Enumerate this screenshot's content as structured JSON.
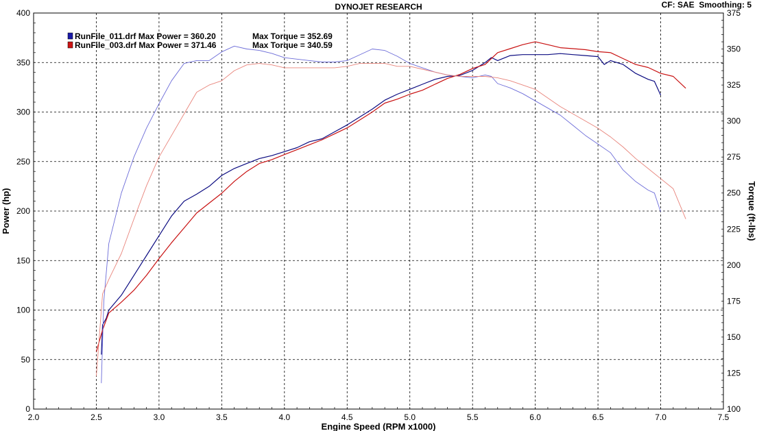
{
  "header": {
    "title": "DYNOJET RESEARCH",
    "cf_label": "CF: SAE",
    "smoothing_label": "Smoothing: 5"
  },
  "chart_data": {
    "type": "line",
    "title": "DYNOJET RESEARCH",
    "xlabel": "Engine Speed (RPM x1000)",
    "ylabel_left": "Power (hp)",
    "ylabel_right": "Torque (ft-lbs)",
    "xlim": [
      2.0,
      7.5
    ],
    "ylim_left": [
      0,
      400
    ],
    "ylim_right": [
      100,
      375
    ],
    "x_ticks": [
      "2.0",
      "2.5",
      "3.0",
      "3.5",
      "4.0",
      "4.5",
      "5.0",
      "5.5",
      "6.0",
      "6.5",
      "7.0",
      "7.5"
    ],
    "y_left_ticks": [
      "0",
      "50",
      "100",
      "150",
      "200",
      "250",
      "300",
      "350",
      "400"
    ],
    "y_right_ticks": [
      "100",
      "125",
      "150",
      "175",
      "200",
      "225",
      "250",
      "275",
      "300",
      "325",
      "350",
      "375"
    ],
    "grid": true,
    "legend": [
      {
        "file": "RunFile_011.drf",
        "power_label": "Max Power = 360.20",
        "torque_label": "Max Torque = 352.69",
        "color": "#1a1aa8"
      },
      {
        "file": "RunFile_003.drf",
        "power_label": "Max Power = 371.46",
        "torque_label": "Max Torque = 340.59",
        "color": "#cc1414"
      }
    ],
    "series": [
      {
        "name": "RunFile_011.drf Power",
        "axis": "left",
        "color": "#0a0a80",
        "width": 1.2,
        "points": [
          [
            2.54,
            55
          ],
          [
            2.55,
            85
          ],
          [
            2.58,
            92
          ],
          [
            2.6,
            100
          ],
          [
            2.7,
            115
          ],
          [
            2.8,
            135
          ],
          [
            2.9,
            155
          ],
          [
            3.0,
            175
          ],
          [
            3.1,
            195
          ],
          [
            3.2,
            210
          ],
          [
            3.3,
            217
          ],
          [
            3.4,
            225
          ],
          [
            3.5,
            236
          ],
          [
            3.6,
            243
          ],
          [
            3.7,
            248
          ],
          [
            3.8,
            253
          ],
          [
            3.9,
            256
          ],
          [
            4.0,
            260
          ],
          [
            4.1,
            264
          ],
          [
            4.2,
            270
          ],
          [
            4.3,
            273
          ],
          [
            4.4,
            280
          ],
          [
            4.5,
            287
          ],
          [
            4.6,
            295
          ],
          [
            4.7,
            303
          ],
          [
            4.8,
            312
          ],
          [
            4.9,
            318
          ],
          [
            5.0,
            323
          ],
          [
            5.1,
            328
          ],
          [
            5.2,
            333
          ],
          [
            5.3,
            336
          ],
          [
            5.4,
            337
          ],
          [
            5.5,
            342
          ],
          [
            5.6,
            350
          ],
          [
            5.65,
            355
          ],
          [
            5.7,
            352
          ],
          [
            5.8,
            357
          ],
          [
            5.9,
            358
          ],
          [
            6.0,
            358
          ],
          [
            6.1,
            358
          ],
          [
            6.2,
            359
          ],
          [
            6.3,
            358
          ],
          [
            6.4,
            357
          ],
          [
            6.5,
            356
          ],
          [
            6.55,
            348
          ],
          [
            6.6,
            352
          ],
          [
            6.7,
            348
          ],
          [
            6.8,
            339
          ],
          [
            6.9,
            333
          ],
          [
            6.95,
            331
          ],
          [
            7.0,
            317
          ]
        ]
      },
      {
        "name": "RunFile_003.drf Power",
        "axis": "left",
        "color": "#c81010",
        "width": 1.2,
        "points": [
          [
            2.5,
            58
          ],
          [
            2.55,
            80
          ],
          [
            2.6,
            97
          ],
          [
            2.7,
            108
          ],
          [
            2.8,
            120
          ],
          [
            2.9,
            135
          ],
          [
            3.0,
            152
          ],
          [
            3.1,
            168
          ],
          [
            3.2,
            183
          ],
          [
            3.3,
            198
          ],
          [
            3.4,
            208
          ],
          [
            3.5,
            218
          ],
          [
            3.6,
            230
          ],
          [
            3.7,
            240
          ],
          [
            3.8,
            248
          ],
          [
            3.9,
            252
          ],
          [
            4.0,
            257
          ],
          [
            4.1,
            262
          ],
          [
            4.2,
            267
          ],
          [
            4.3,
            272
          ],
          [
            4.4,
            278
          ],
          [
            4.5,
            284
          ],
          [
            4.6,
            292
          ],
          [
            4.7,
            300
          ],
          [
            4.8,
            309
          ],
          [
            4.9,
            313
          ],
          [
            5.0,
            318
          ],
          [
            5.1,
            322
          ],
          [
            5.2,
            328
          ],
          [
            5.3,
            334
          ],
          [
            5.4,
            338
          ],
          [
            5.5,
            344
          ],
          [
            5.6,
            348
          ],
          [
            5.7,
            360
          ],
          [
            5.8,
            364
          ],
          [
            5.9,
            368
          ],
          [
            6.0,
            371
          ],
          [
            6.1,
            368
          ],
          [
            6.2,
            365
          ],
          [
            6.3,
            364
          ],
          [
            6.4,
            363
          ],
          [
            6.5,
            361
          ],
          [
            6.6,
            360
          ],
          [
            6.7,
            354
          ],
          [
            6.8,
            348
          ],
          [
            6.9,
            345
          ],
          [
            7.0,
            339
          ],
          [
            7.1,
            336
          ],
          [
            7.2,
            324
          ]
        ]
      },
      {
        "name": "RunFile_011.drf Torque",
        "axis": "right",
        "color": "#6b6bd8",
        "width": 0.9,
        "points": [
          [
            2.54,
            118
          ],
          [
            2.56,
            175
          ],
          [
            2.6,
            215
          ],
          [
            2.7,
            250
          ],
          [
            2.8,
            275
          ],
          [
            2.9,
            295
          ],
          [
            3.0,
            312
          ],
          [
            3.1,
            328
          ],
          [
            3.2,
            340
          ],
          [
            3.3,
            342
          ],
          [
            3.4,
            342
          ],
          [
            3.5,
            348
          ],
          [
            3.6,
            352
          ],
          [
            3.7,
            350
          ],
          [
            3.8,
            349
          ],
          [
            3.9,
            347
          ],
          [
            4.0,
            344
          ],
          [
            4.1,
            343
          ],
          [
            4.2,
            342
          ],
          [
            4.3,
            341
          ],
          [
            4.4,
            341
          ],
          [
            4.5,
            342
          ],
          [
            4.6,
            346
          ],
          [
            4.7,
            350
          ],
          [
            4.8,
            349
          ],
          [
            4.9,
            345
          ],
          [
            5.0,
            340
          ],
          [
            5.1,
            337
          ],
          [
            5.2,
            334
          ],
          [
            5.3,
            332
          ],
          [
            5.4,
            331
          ],
          [
            5.5,
            330
          ],
          [
            5.6,
            332
          ],
          [
            5.65,
            331
          ],
          [
            5.7,
            326
          ],
          [
            5.8,
            323
          ],
          [
            5.9,
            319
          ],
          [
            6.0,
            314
          ],
          [
            6.1,
            309
          ],
          [
            6.2,
            304
          ],
          [
            6.3,
            297
          ],
          [
            6.4,
            290
          ],
          [
            6.5,
            284
          ],
          [
            6.6,
            278
          ],
          [
            6.7,
            266
          ],
          [
            6.8,
            258
          ],
          [
            6.9,
            252
          ],
          [
            6.95,
            250
          ],
          [
            7.0,
            237
          ]
        ]
      },
      {
        "name": "RunFile_003.drf Torque",
        "axis": "right",
        "color": "#e8837a",
        "width": 0.9,
        "points": [
          [
            2.5,
            123
          ],
          [
            2.55,
            180
          ],
          [
            2.6,
            190
          ],
          [
            2.7,
            208
          ],
          [
            2.8,
            232
          ],
          [
            2.9,
            255
          ],
          [
            3.0,
            275
          ],
          [
            3.1,
            290
          ],
          [
            3.2,
            305
          ],
          [
            3.3,
            320
          ],
          [
            3.4,
            325
          ],
          [
            3.5,
            328
          ],
          [
            3.6,
            335
          ],
          [
            3.7,
            339
          ],
          [
            3.8,
            340
          ],
          [
            3.9,
            339
          ],
          [
            4.0,
            337
          ],
          [
            4.1,
            337
          ],
          [
            4.2,
            337
          ],
          [
            4.3,
            337
          ],
          [
            4.4,
            337
          ],
          [
            4.5,
            338
          ],
          [
            4.6,
            340
          ],
          [
            4.7,
            340
          ],
          [
            4.8,
            340
          ],
          [
            4.9,
            338
          ],
          [
            5.0,
            338
          ],
          [
            5.1,
            336
          ],
          [
            5.2,
            334
          ],
          [
            5.3,
            332
          ],
          [
            5.4,
            331
          ],
          [
            5.5,
            331
          ],
          [
            5.6,
            331
          ],
          [
            5.7,
            330
          ],
          [
            5.8,
            328
          ],
          [
            5.9,
            325
          ],
          [
            6.0,
            322
          ],
          [
            6.1,
            316
          ],
          [
            6.2,
            310
          ],
          [
            6.3,
            305
          ],
          [
            6.4,
            300
          ],
          [
            6.5,
            295
          ],
          [
            6.6,
            289
          ],
          [
            6.7,
            282
          ],
          [
            6.8,
            274
          ],
          [
            6.9,
            267
          ],
          [
            7.0,
            260
          ],
          [
            7.1,
            253
          ],
          [
            7.2,
            232
          ]
        ]
      }
    ]
  }
}
